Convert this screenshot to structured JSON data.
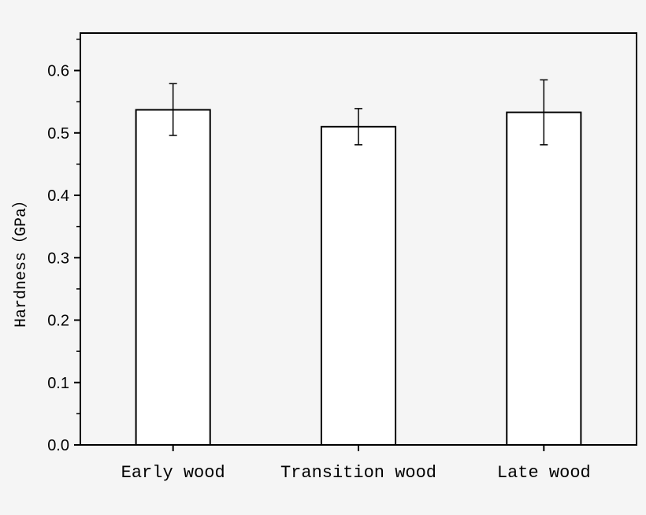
{
  "chart_data": {
    "type": "bar",
    "categories": [
      "Early wood",
      "Transition wood",
      "Late wood"
    ],
    "values": [
      0.537,
      0.51,
      0.533
    ],
    "errors": [
      [
        0.496,
        0.579
      ],
      [
        0.481,
        0.539
      ],
      [
        0.481,
        0.585
      ]
    ],
    "ylabel": "Hardness（GPa）",
    "ylim": [
      0,
      0.66
    ],
    "yticks": [
      0.0,
      0.1,
      0.2,
      0.3,
      0.4,
      0.5,
      0.6
    ],
    "ytick_labels": [
      "0.0",
      "0.1",
      "0.2",
      "0.3",
      "0.4",
      "0.5",
      "0.6"
    ],
    "grid": false,
    "colors": {
      "bar_fill": "#ffffff",
      "stroke": "#000000"
    }
  }
}
